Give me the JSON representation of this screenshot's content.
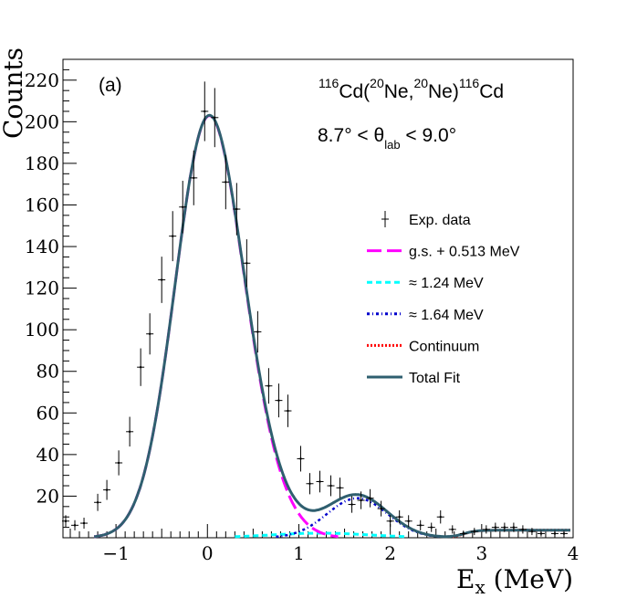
{
  "chart_data": {
    "type": "scatter",
    "xlabel_main": "E",
    "xlabel_sub": "x",
    "xlabel_unit": " (MeV)",
    "ylabel": "Counts",
    "xlim": [
      -1.58,
      4.0
    ],
    "ylim": [
      0,
      230
    ],
    "x_ticks": [
      -1,
      0,
      1,
      2,
      3,
      4
    ],
    "x_tick_labels": [
      "−1",
      "0",
      "1",
      "2",
      "3",
      "4"
    ],
    "y_ticks": [
      20,
      40,
      60,
      80,
      100,
      120,
      140,
      160,
      180,
      200,
      220
    ],
    "y_tick_labels": [
      "20",
      "40",
      "60",
      "80",
      "100",
      "120",
      "140",
      "160",
      "180",
      "200",
      "220"
    ],
    "panel_label": "(a)",
    "reaction": {
      "sup1": "116",
      "t1": "Cd(",
      "sup2": "20",
      "t2": "Ne,",
      "sup3": "20",
      "t3": "Ne)",
      "sup4": "116",
      "t4": "Cd"
    },
    "angle": {
      "pre": "8.7° < θ",
      "sub": "lab",
      "post": " < 9.0°"
    },
    "colors": {
      "data": "#000000",
      "gs": "#ff00ff",
      "s124": "#00ffff",
      "s164": "#0000cc",
      "continuum": "#ff0000",
      "total": "#2f5f6f"
    },
    "legend": [
      {
        "label": "Exp. data",
        "style": "data"
      },
      {
        "label": "g.s. + 0.513 MeV",
        "style": "gs"
      },
      {
        "label": "≈ 1.24 MeV",
        "style": "s124"
      },
      {
        "label": "≈ 1.64 MeV",
        "style": "s164"
      },
      {
        "label": "Continuum",
        "style": "continuum"
      },
      {
        "label": "Total Fit",
        "style": "total"
      }
    ],
    "data_points": [
      {
        "x": -1.55,
        "y": 8
      },
      {
        "x": -1.45,
        "y": 6
      },
      {
        "x": -1.35,
        "y": 7
      },
      {
        "x": -1.2,
        "y": 17
      },
      {
        "x": -1.1,
        "y": 23
      },
      {
        "x": -0.97,
        "y": 36
      },
      {
        "x": -0.85,
        "y": 51
      },
      {
        "x": -0.73,
        "y": 82
      },
      {
        "x": -0.63,
        "y": 98
      },
      {
        "x": -0.5,
        "y": 124
      },
      {
        "x": -0.38,
        "y": 145
      },
      {
        "x": -0.27,
        "y": 159
      },
      {
        "x": -0.15,
        "y": 173
      },
      {
        "x": -0.03,
        "y": 205
      },
      {
        "x": 0.08,
        "y": 202
      },
      {
        "x": 0.2,
        "y": 171
      },
      {
        "x": 0.32,
        "y": 158
      },
      {
        "x": 0.43,
        "y": 132
      },
      {
        "x": 0.55,
        "y": 99
      },
      {
        "x": 0.67,
        "y": 73
      },
      {
        "x": 0.78,
        "y": 66
      },
      {
        "x": 0.88,
        "y": 61
      },
      {
        "x": 1.02,
        "y": 38
      },
      {
        "x": 1.12,
        "y": 26
      },
      {
        "x": 1.23,
        "y": 27
      },
      {
        "x": 1.35,
        "y": 25
      },
      {
        "x": 1.45,
        "y": 24
      },
      {
        "x": 1.58,
        "y": 16
      },
      {
        "x": 1.68,
        "y": 18
      },
      {
        "x": 1.78,
        "y": 19
      },
      {
        "x": 1.9,
        "y": 14
      },
      {
        "x": 2.0,
        "y": 8
      },
      {
        "x": 2.1,
        "y": 10
      },
      {
        "x": 2.2,
        "y": 8
      },
      {
        "x": 2.33,
        "y": 6
      },
      {
        "x": 2.45,
        "y": 5
      },
      {
        "x": 2.55,
        "y": 10
      },
      {
        "x": 2.68,
        "y": 4
      },
      {
        "x": 2.8,
        "y": 2
      },
      {
        "x": 2.92,
        "y": 3
      },
      {
        "x": 3.05,
        "y": 4
      },
      {
        "x": 3.15,
        "y": 5
      },
      {
        "x": 3.25,
        "y": 5
      },
      {
        "x": 3.35,
        "y": 5
      },
      {
        "x": 3.45,
        "y": 4
      },
      {
        "x": 3.55,
        "y": 3
      },
      {
        "x": 3.65,
        "y": 2
      },
      {
        "x": 3.8,
        "y": 2
      },
      {
        "x": 3.9,
        "y": 2
      }
    ]
  }
}
